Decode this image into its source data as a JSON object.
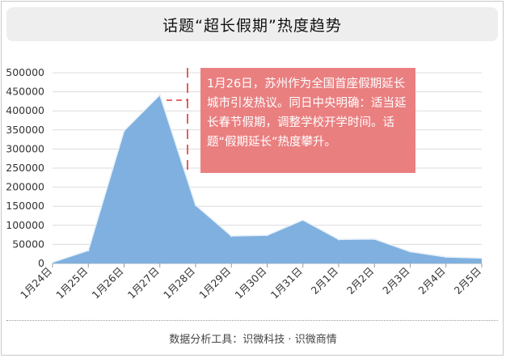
{
  "title": "话题“超长假期”热度趋势",
  "footer": "数据分析工具：识微科技 · 识微商情",
  "annotation": "1月26日，苏州作为全国首座假期延长城市引发热议。同日中央明确：适当延长春节假期，调整学校开学时间。话题“假期延长”热度攀升。",
  "colors": {
    "area_fill": "#7fb0df",
    "area_line": "#e6f0fa",
    "annotation_bg": "#ea7f80",
    "annotation_line": "#e0383a",
    "title_bg": "#eeeeee"
  },
  "chart_data": {
    "type": "area",
    "title": "话题“超长假期”热度趋势",
    "categories": [
      "1月24日",
      "1月25日",
      "1月26日",
      "1月27日",
      "1月28日",
      "1月29日",
      "1月30日",
      "1月31日",
      "2月1日",
      "2月2日",
      "2月3日",
      "2月4日",
      "2月5日"
    ],
    "values": [
      3000,
      34000,
      348000,
      442000,
      153000,
      72000,
      74000,
      114000,
      63000,
      64000,
      31000,
      17000,
      14000
    ],
    "ylim": [
      0,
      500000
    ],
    "yticks": [
      0,
      50000,
      100000,
      150000,
      200000,
      250000,
      300000,
      350000,
      400000,
      450000,
      500000
    ],
    "grid": true,
    "legend": "none"
  }
}
